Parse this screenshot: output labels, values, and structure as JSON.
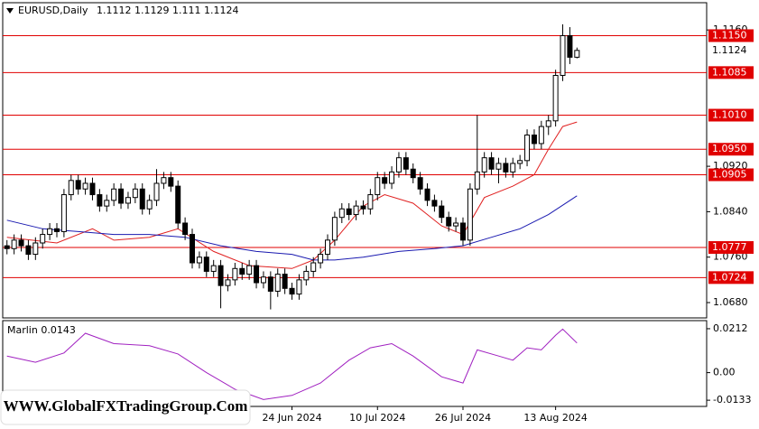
{
  "chart_data": {
    "type": "candlestick",
    "title": "EURUSD,Daily",
    "open": [
      1.078,
      1.0775,
      1.079,
      1.078,
      1.0765,
      1.0785,
      1.08,
      1.081,
      1.0805,
      1.087,
      1.0895,
      1.088,
      1.089,
      1.087,
      1.085,
      1.086,
      1.088,
      1.0855,
      1.0865,
      1.088,
      1.0845,
      1.086,
      1.089,
      1.09,
      1.0885,
      1.082,
      1.08,
      1.075,
      1.076,
      1.0735,
      1.0745,
      1.071,
      1.072,
      1.074,
      1.073,
      1.0745,
      1.0715,
      1.0725,
      1.07,
      1.073,
      1.0705,
      1.0695,
      1.072,
      1.0735,
      1.075,
      1.0765,
      1.079,
      1.083,
      1.0845,
      1.0835,
      1.085,
      1.0845,
      1.087,
      1.09,
      1.089,
      1.091,
      1.0935,
      1.0915,
      1.09,
      1.088,
      1.086,
      1.085,
      1.083,
      1.0815,
      1.082,
      1.079,
      1.088,
      1.091,
      1.0935,
      1.0915,
      1.0925,
      1.091,
      1.0925,
      1.093,
      1.0975,
      1.096,
      1.099,
      1.1,
      1.108,
      1.115,
      1.1112
    ],
    "high": [
      1.079,
      1.08,
      1.08,
      1.079,
      1.0795,
      1.081,
      1.082,
      1.082,
      1.088,
      1.0905,
      1.0905,
      1.09,
      1.09,
      1.088,
      1.087,
      1.089,
      1.089,
      1.0875,
      1.089,
      1.089,
      1.087,
      1.0915,
      1.091,
      1.091,
      1.0895,
      1.083,
      1.081,
      1.077,
      1.077,
      1.0755,
      1.0755,
      1.073,
      1.075,
      1.075,
      1.0755,
      1.0755,
      1.0735,
      1.0735,
      1.074,
      1.074,
      1.0715,
      1.073,
      1.0745,
      1.076,
      1.0775,
      1.08,
      1.084,
      1.0855,
      1.0855,
      1.086,
      1.086,
      1.088,
      1.091,
      1.091,
      1.092,
      1.0945,
      1.0945,
      1.0925,
      1.091,
      1.089,
      1.087,
      1.086,
      1.084,
      1.083,
      1.083,
      1.089,
      1.101,
      1.0945,
      1.0945,
      1.0935,
      1.0935,
      1.0935,
      1.094,
      1.0985,
      1.0985,
      1.1,
      1.101,
      1.109,
      1.117,
      1.1165,
      1.1129
    ],
    "low": [
      1.0765,
      1.0765,
      1.077,
      1.0755,
      1.0755,
      1.0775,
      1.079,
      1.0795,
      1.0795,
      1.086,
      1.087,
      1.087,
      1.086,
      1.084,
      1.084,
      1.085,
      1.0845,
      1.0845,
      1.0855,
      1.0835,
      1.0835,
      1.085,
      1.088,
      1.0875,
      1.081,
      1.079,
      1.074,
      1.074,
      1.0725,
      1.0725,
      1.067,
      1.07,
      1.071,
      1.072,
      1.072,
      1.0705,
      1.0705,
      1.0668,
      1.069,
      1.0695,
      1.0685,
      1.0685,
      1.071,
      1.0725,
      1.074,
      1.0755,
      1.078,
      1.082,
      1.0825,
      1.0825,
      1.0835,
      1.0835,
      1.086,
      1.088,
      1.088,
      1.09,
      1.0905,
      1.089,
      1.087,
      1.085,
      1.084,
      1.082,
      1.0805,
      1.0805,
      1.078,
      1.078,
      1.087,
      1.09,
      1.0905,
      1.089,
      1.09,
      1.09,
      1.0915,
      1.092,
      1.095,
      1.095,
      1.0975,
      1.099,
      1.107,
      1.11,
      1.111
    ],
    "close": [
      1.0775,
      1.079,
      1.078,
      1.0765,
      1.0785,
      1.08,
      1.081,
      1.0805,
      1.087,
      1.0895,
      1.088,
      1.089,
      1.087,
      1.085,
      1.086,
      1.088,
      1.0855,
      1.0865,
      1.088,
      1.0845,
      1.086,
      1.089,
      1.09,
      1.0885,
      1.082,
      1.08,
      1.075,
      1.076,
      1.0735,
      1.0745,
      1.071,
      1.072,
      1.074,
      1.073,
      1.0745,
      1.0715,
      1.0725,
      1.07,
      1.073,
      1.0705,
      1.0695,
      1.072,
      1.0735,
      1.075,
      1.0765,
      1.079,
      1.083,
      1.0845,
      1.0835,
      1.085,
      1.0845,
      1.087,
      1.09,
      1.089,
      1.091,
      1.0935,
      1.0915,
      1.09,
      1.088,
      1.086,
      1.085,
      1.083,
      1.0815,
      1.082,
      1.079,
      1.088,
      1.091,
      1.0935,
      1.0915,
      1.0925,
      1.091,
      1.0925,
      1.093,
      1.0975,
      1.096,
      1.099,
      1.1,
      1.108,
      1.115,
      1.1112,
      1.1124
    ],
    "ylim": [
      1.0653,
      1.1208
    ],
    "yticks": [
      {
        "value": 1.116,
        "label": "1.1160"
      },
      {
        "value": 1.092,
        "label": "1.0920"
      },
      {
        "value": 1.084,
        "label": "1.0840"
      },
      {
        "value": 1.076,
        "label": "1.0760"
      },
      {
        "value": 1.068,
        "label": "1.0680"
      }
    ],
    "xlim": [
      -0.6,
      98.2
    ],
    "xticks": [
      {
        "value": 40,
        "label": "24 Jun 2024"
      },
      {
        "value": 52,
        "label": "10 Jul 2024"
      },
      {
        "value": 64,
        "label": "26 Jul 2024"
      },
      {
        "value": 77,
        "label": "13 Aug 2024"
      }
    ],
    "levels": [
      {
        "value": 1.115,
        "label": "1.1150"
      },
      1.1085,
      {
        "value": 1.101,
        "label": "1.1010"
      },
      {
        "value": 1.095,
        "label": "1.0950"
      },
      1.0905,
      1.0777,
      1.0724
    ],
    "level_color": "#e00000",
    "current_price": 1.1124,
    "overlays": [
      {
        "color": "#e02020",
        "x": [
          0,
          7,
          12,
          15,
          20,
          24,
          29,
          34,
          40,
          43,
          46,
          50,
          53,
          57,
          61,
          64,
          67,
          71,
          74,
          76,
          78,
          80
        ],
        "values": [
          1.0795,
          1.0785,
          1.081,
          1.079,
          1.0795,
          1.081,
          1.077,
          1.0745,
          1.074,
          1.0755,
          1.079,
          1.085,
          1.087,
          1.0855,
          1.0815,
          1.08,
          1.0865,
          1.0885,
          1.0905,
          1.095,
          1.099,
          1.0998
        ]
      },
      {
        "color": "#1a1ab0",
        "x": [
          0,
          5,
          10,
          15,
          20,
          25,
          30,
          35,
          40,
          43,
          46,
          50,
          55,
          60,
          64,
          68,
          72,
          76,
          80
        ],
        "values": [
          1.0825,
          1.081,
          1.0805,
          1.08,
          1.08,
          1.0795,
          1.078,
          1.077,
          1.0765,
          1.0755,
          1.0755,
          1.076,
          1.077,
          1.0775,
          1.078,
          1.0795,
          1.081,
          1.0835,
          1.0868
        ]
      }
    ],
    "indicator": {
      "name": "Marlin",
      "last": 0.0143,
      "color": "#a020c0",
      "x": [
        0,
        4,
        8,
        11,
        15,
        20,
        24,
        28,
        32,
        36,
        40,
        44,
        48,
        51,
        54,
        57,
        61,
        64,
        66,
        69,
        71,
        73,
        75,
        77,
        78,
        80
      ],
      "values": [
        0.008,
        0.005,
        0.0095,
        0.019,
        0.014,
        0.013,
        0.009,
        0.0,
        -0.008,
        -0.013,
        -0.011,
        -0.005,
        0.006,
        0.012,
        0.014,
        0.008,
        -0.002,
        -0.005,
        0.011,
        0.008,
        0.006,
        0.012,
        0.011,
        0.018,
        0.021,
        0.0143
      ],
      "ylim": [
        -0.0163,
        0.0251
      ],
      "yticks": [
        0.0212,
        {
          "value": 0,
          "label": "0.00"
        },
        -0.0133
      ]
    },
    "watermark": "WWW.GlobalFXTradingGroup.Com"
  }
}
